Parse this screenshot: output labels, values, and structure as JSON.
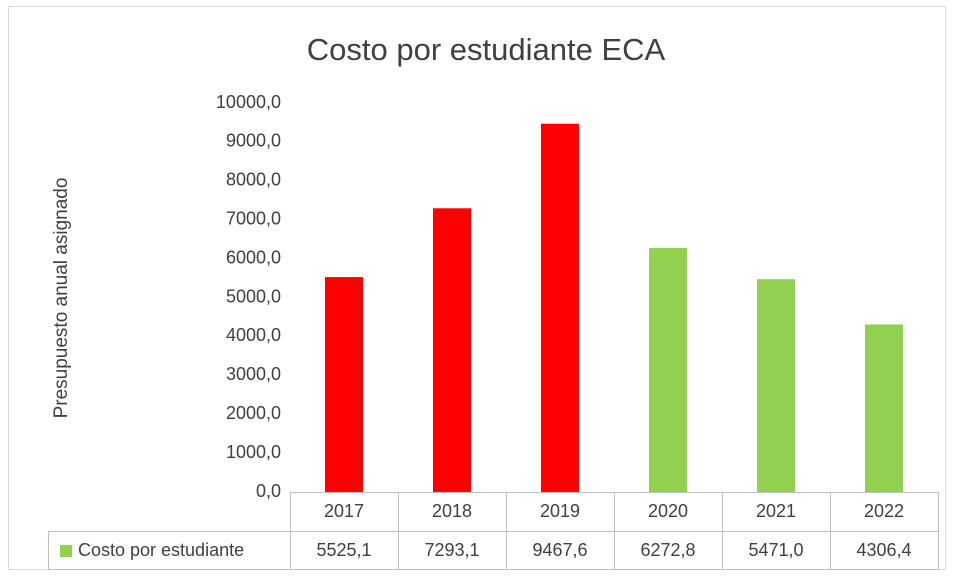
{
  "chart_data": {
    "type": "bar",
    "title": "Costo por estudiante ECA",
    "y_label": "Presupuesto anual asignado",
    "categories": [
      "2017",
      "2018",
      "2019",
      "2020",
      "2021",
      "2022"
    ],
    "series": [
      {
        "name": "Costo por estudiante",
        "color": "#92d050",
        "colors": [
          "#ff0000",
          "#ff0000",
          "#ff0000",
          "#92d050",
          "#92d050",
          "#92d050"
        ],
        "values": [
          5525.1,
          7293.1,
          9467.6,
          6272.8,
          5471.0,
          4306.4
        ],
        "value_labels": [
          "5525,1",
          "7293,1",
          "9467,6",
          "6272,8",
          "5471,0",
          "4306,4"
        ]
      }
    ],
    "ylim": [
      0,
      10000
    ],
    "yticks": [
      {
        "value": 0,
        "label": "0,0"
      },
      {
        "value": 1000,
        "label": "1000,0"
      },
      {
        "value": 2000,
        "label": "2000,0"
      },
      {
        "value": 3000,
        "label": "3000,0"
      },
      {
        "value": 4000,
        "label": "4000,0"
      },
      {
        "value": 5000,
        "label": "5000,0"
      },
      {
        "value": 6000,
        "label": "6000,0"
      },
      {
        "value": 7000,
        "label": "7000,0"
      },
      {
        "value": 8000,
        "label": "8000,0"
      },
      {
        "value": 9000,
        "label": "9000,0"
      },
      {
        "value": 10000,
        "label": "10000,0"
      }
    ],
    "grid": false,
    "data_table": true
  }
}
